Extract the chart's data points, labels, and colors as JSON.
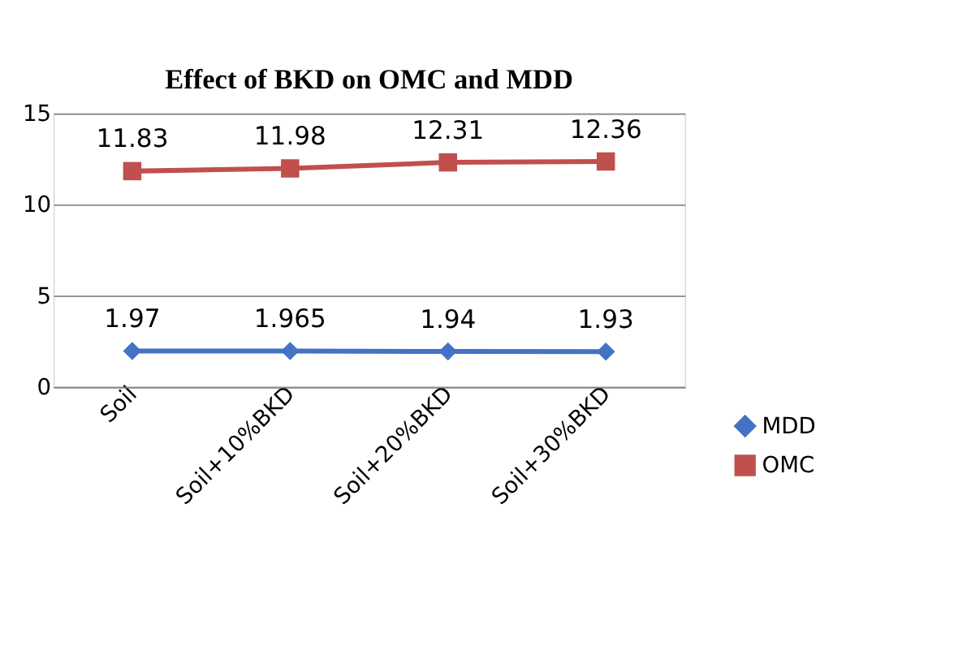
{
  "chart_data": {
    "type": "line",
    "title": "Effect of BKD on OMC and MDD",
    "categories": [
      "Soil",
      "Soil+10%BKD",
      "Soil+20%BKD",
      "Soil+30%BKD"
    ],
    "series": [
      {
        "name": "MDD",
        "color": "#4472c4",
        "marker": "diamond",
        "values": [
          1.97,
          1.965,
          1.94,
          1.93
        ]
      },
      {
        "name": "OMC",
        "color": "#c0504d",
        "marker": "square",
        "values": [
          11.83,
          11.98,
          12.31,
          12.36
        ]
      }
    ],
    "ylim": [
      0,
      15
    ],
    "yticks": [
      0,
      5,
      10,
      15
    ],
    "grid": "y",
    "legend": "bottom right",
    "data_labels": true,
    "line_style": "solid"
  }
}
